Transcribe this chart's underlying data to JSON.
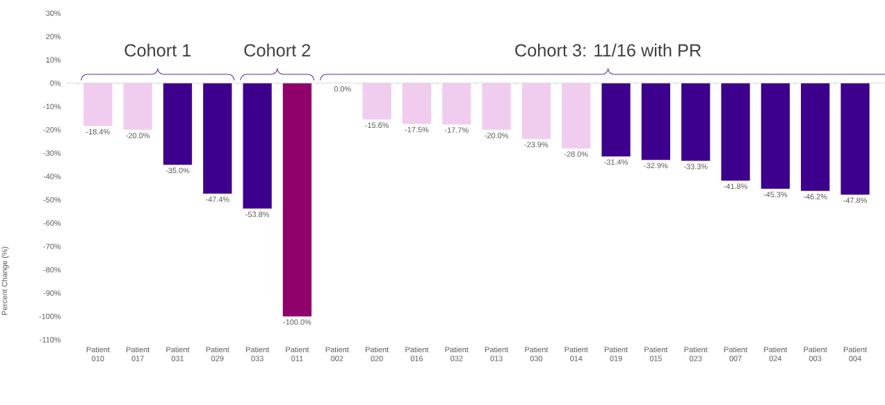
{
  "chart_data": {
    "type": "bar",
    "ylabel": "Percent Change (%)",
    "categories": [
      "Patient 010",
      "Patient 017",
      "Patient 031",
      "Patient 029",
      "Patient 033",
      "Patient 011",
      "Patient 002",
      "Patient 020",
      "Patient 016",
      "Patient 032",
      "Patient 013",
      "Patient 030",
      "Patient 014",
      "Patient 019",
      "Patient 015",
      "Patient 023",
      "Patient 007",
      "Patient 024",
      "Patient 003",
      "Patient 004"
    ],
    "values": [
      -18.4,
      -20.0,
      -35.0,
      -47.4,
      -53.8,
      -100.0,
      0.0,
      -15.6,
      -17.5,
      -17.7,
      -20.0,
      -23.9,
      -28.0,
      -31.4,
      -32.9,
      -33.3,
      -41.8,
      -45.3,
      -46.2,
      -47.8
    ],
    "value_labels": [
      "-18.4%",
      "-20.0%",
      "-35.0%",
      "-47.4%",
      "-53.8%",
      "-100.0%",
      "0.0%",
      "-15.6%",
      "-17.5%",
      "-17.7%",
      "-20.0%",
      "-23.9%",
      "-28.0%",
      "-31.4%",
      "-32.9%",
      "-33.3%",
      "-41.8%",
      "-45.3%",
      "-46.2%",
      "-47.8%"
    ],
    "colors": [
      "#f0cdef",
      "#f0cdef",
      "#3d008c",
      "#3d008c",
      "#3d008c",
      "#8f006b",
      "#f0cdef",
      "#f0cdef",
      "#f0cdef",
      "#f0cdef",
      "#f0cdef",
      "#f0cdef",
      "#f0cdef",
      "#3d008c",
      "#3d008c",
      "#3d008c",
      "#3d008c",
      "#3d008c",
      "#3d008c",
      "#3d008c"
    ],
    "ylim": [
      -110,
      30
    ],
    "yticks": [
      {
        "value": 30,
        "label": "30%"
      },
      {
        "value": 20,
        "label": "20%"
      },
      {
        "value": 10,
        "label": "10%"
      },
      {
        "value": 0,
        "label": "0%"
      },
      {
        "value": -10,
        "label": "-10%"
      },
      {
        "value": -20,
        "label": "-20%"
      },
      {
        "value": -30,
        "label": "-30%"
      },
      {
        "value": -40,
        "label": "-40%"
      },
      {
        "value": -50,
        "label": "-50%"
      },
      {
        "value": -60,
        "label": "-60%"
      },
      {
        "value": -70,
        "label": "-70%"
      },
      {
        "value": -80,
        "label": "-80%"
      },
      {
        "value": -90,
        "label": "-90%"
      },
      {
        "value": -100,
        "label": "-100%"
      },
      {
        "value": -110,
        "label": "-110%"
      }
    ],
    "annotations": [
      "Cohort 1",
      "Cohort 2",
      "Cohort 3: 11/16 with PR"
    ]
  }
}
